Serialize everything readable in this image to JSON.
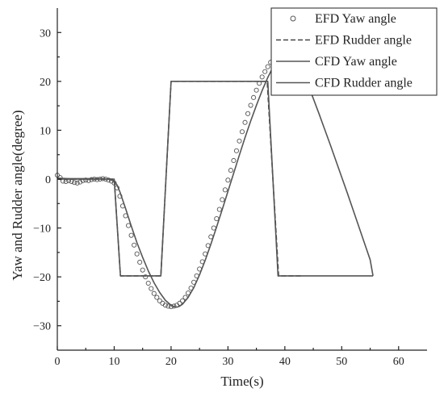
{
  "chart_data": {
    "type": "line",
    "title": "",
    "xlabel": "Time(s)",
    "ylabel": "Yaw and Rudder angle(degree)",
    "xlim": [
      0,
      65
    ],
    "ylim": [
      -35,
      35
    ],
    "x_ticks": [
      0,
      10,
      20,
      30,
      40,
      50,
      60
    ],
    "y_ticks": [
      -30,
      -20,
      -10,
      0,
      10,
      20,
      30
    ],
    "grid": false,
    "legend_position": "top-right",
    "series": [
      {
        "name": "EFD Yaw angle",
        "style": "markers-open-circle",
        "color": "#555555",
        "x": [
          0.0,
          0.5,
          1.0,
          1.5,
          2.0,
          2.5,
          3.0,
          3.5,
          4.0,
          4.5,
          5.0,
          5.5,
          6.0,
          6.5,
          7.0,
          7.5,
          8.0,
          8.5,
          9.0,
          9.5,
          10.0,
          10.5,
          11.0,
          11.5,
          12.0,
          12.5,
          13.0,
          13.5,
          14.0,
          14.5,
          15.0,
          15.5,
          16.0,
          16.5,
          17.0,
          17.5,
          18.0,
          18.5,
          19.0,
          19.5,
          20.0,
          20.5,
          21.0,
          21.5,
          22.0,
          22.5,
          23.0,
          23.5,
          24.0,
          24.5,
          25.0,
          25.5,
          26.0,
          26.5,
          27.0,
          27.5,
          28.0,
          28.5,
          29.0,
          29.5,
          30.0,
          30.5,
          31.0,
          31.5,
          32.0,
          32.5,
          33.0,
          33.5,
          34.0,
          34.5,
          35.0,
          35.5,
          36.0,
          36.5,
          37.0,
          37.5,
          38.0,
          38.5,
          39.0,
          39.5,
          40.0,
          40.5,
          41.0,
          41.5,
          42.0,
          42.5,
          43.0
        ],
        "y": [
          0.8,
          0.3,
          -0.4,
          -0.5,
          -0.3,
          -0.5,
          -0.7,
          -0.8,
          -0.6,
          -0.3,
          -0.2,
          -0.3,
          -0.1,
          0.0,
          -0.1,
          0.0,
          0.1,
          0.0,
          -0.2,
          -0.4,
          -0.8,
          -1.8,
          -3.5,
          -5.5,
          -7.5,
          -9.5,
          -11.5,
          -13.5,
          -15.3,
          -17.0,
          -18.6,
          -20.0,
          -21.3,
          -22.4,
          -23.4,
          -24.2,
          -24.9,
          -25.4,
          -25.8,
          -26.0,
          -26.1,
          -26.0,
          -25.8,
          -25.4,
          -24.9,
          -24.2,
          -23.3,
          -22.3,
          -21.1,
          -19.8,
          -18.4,
          -16.9,
          -15.3,
          -13.6,
          -11.8,
          -10.0,
          -8.1,
          -6.2,
          -4.2,
          -2.2,
          -0.2,
          1.8,
          3.8,
          5.8,
          7.8,
          9.7,
          11.6,
          13.4,
          15.1,
          16.7,
          18.2,
          19.6,
          20.9,
          22.0,
          23.0,
          23.9,
          24.6,
          25.2,
          25.6,
          25.9,
          26.0,
          26.0,
          25.8,
          25.3,
          24.6,
          23.6,
          22.4
        ]
      },
      {
        "name": "EFD Rudder angle",
        "style": "dashed",
        "color": "#444444",
        "x": [
          0,
          9.8,
          10.0,
          11.1,
          18.2,
          20.0,
          36.9,
          38.9,
          43.0
        ],
        "y": [
          0,
          0,
          0,
          -19.8,
          -19.8,
          20.0,
          20.0,
          -19.8,
          -19.8
        ]
      },
      {
        "name": "CFD Yaw angle",
        "style": "solid",
        "color": "#555555",
        "x": [
          0,
          2,
          4,
          6,
          8,
          9,
          10,
          10.5,
          11,
          12,
          13,
          14,
          15,
          16,
          17,
          18,
          19,
          20,
          20.5,
          21,
          21.5,
          22,
          23,
          24,
          25,
          26,
          27,
          28,
          29,
          30,
          31,
          32,
          33,
          34,
          35,
          36,
          37,
          38,
          39,
          39.5,
          40,
          40.5,
          41,
          41.5,
          42,
          43,
          44,
          45,
          46,
          47,
          48,
          49,
          50,
          51,
          52,
          53,
          54,
          55,
          55.5
        ],
        "y": [
          0.2,
          0.1,
          0.1,
          0.1,
          0.1,
          0.0,
          -0.4,
          -1.2,
          -2.6,
          -6.0,
          -9.6,
          -13.0,
          -16.0,
          -18.8,
          -21.2,
          -23.2,
          -24.8,
          -25.8,
          -26.1,
          -26.2,
          -26.0,
          -25.6,
          -24.2,
          -22.2,
          -19.6,
          -16.6,
          -13.3,
          -9.8,
          -6.2,
          -2.5,
          1.2,
          4.9,
          8.5,
          11.9,
          15.1,
          18.1,
          20.8,
          23.1,
          24.9,
          25.6,
          26.0,
          26.1,
          25.9,
          25.4,
          24.6,
          22.3,
          19.5,
          16.5,
          13.4,
          10.2,
          7.0,
          3.7,
          0.4,
          -2.9,
          -6.3,
          -9.7,
          -13.1,
          -16.5,
          -19.8
        ]
      },
      {
        "name": "CFD Rudder angle",
        "style": "solid",
        "color": "#555555",
        "x": [
          0,
          10.0,
          11.1,
          18.2,
          20.0,
          37.0,
          38.8,
          55.5
        ],
        "y": [
          0,
          0,
          -19.8,
          -19.8,
          20.0,
          20.0,
          -19.8,
          -19.8
        ]
      }
    ]
  }
}
